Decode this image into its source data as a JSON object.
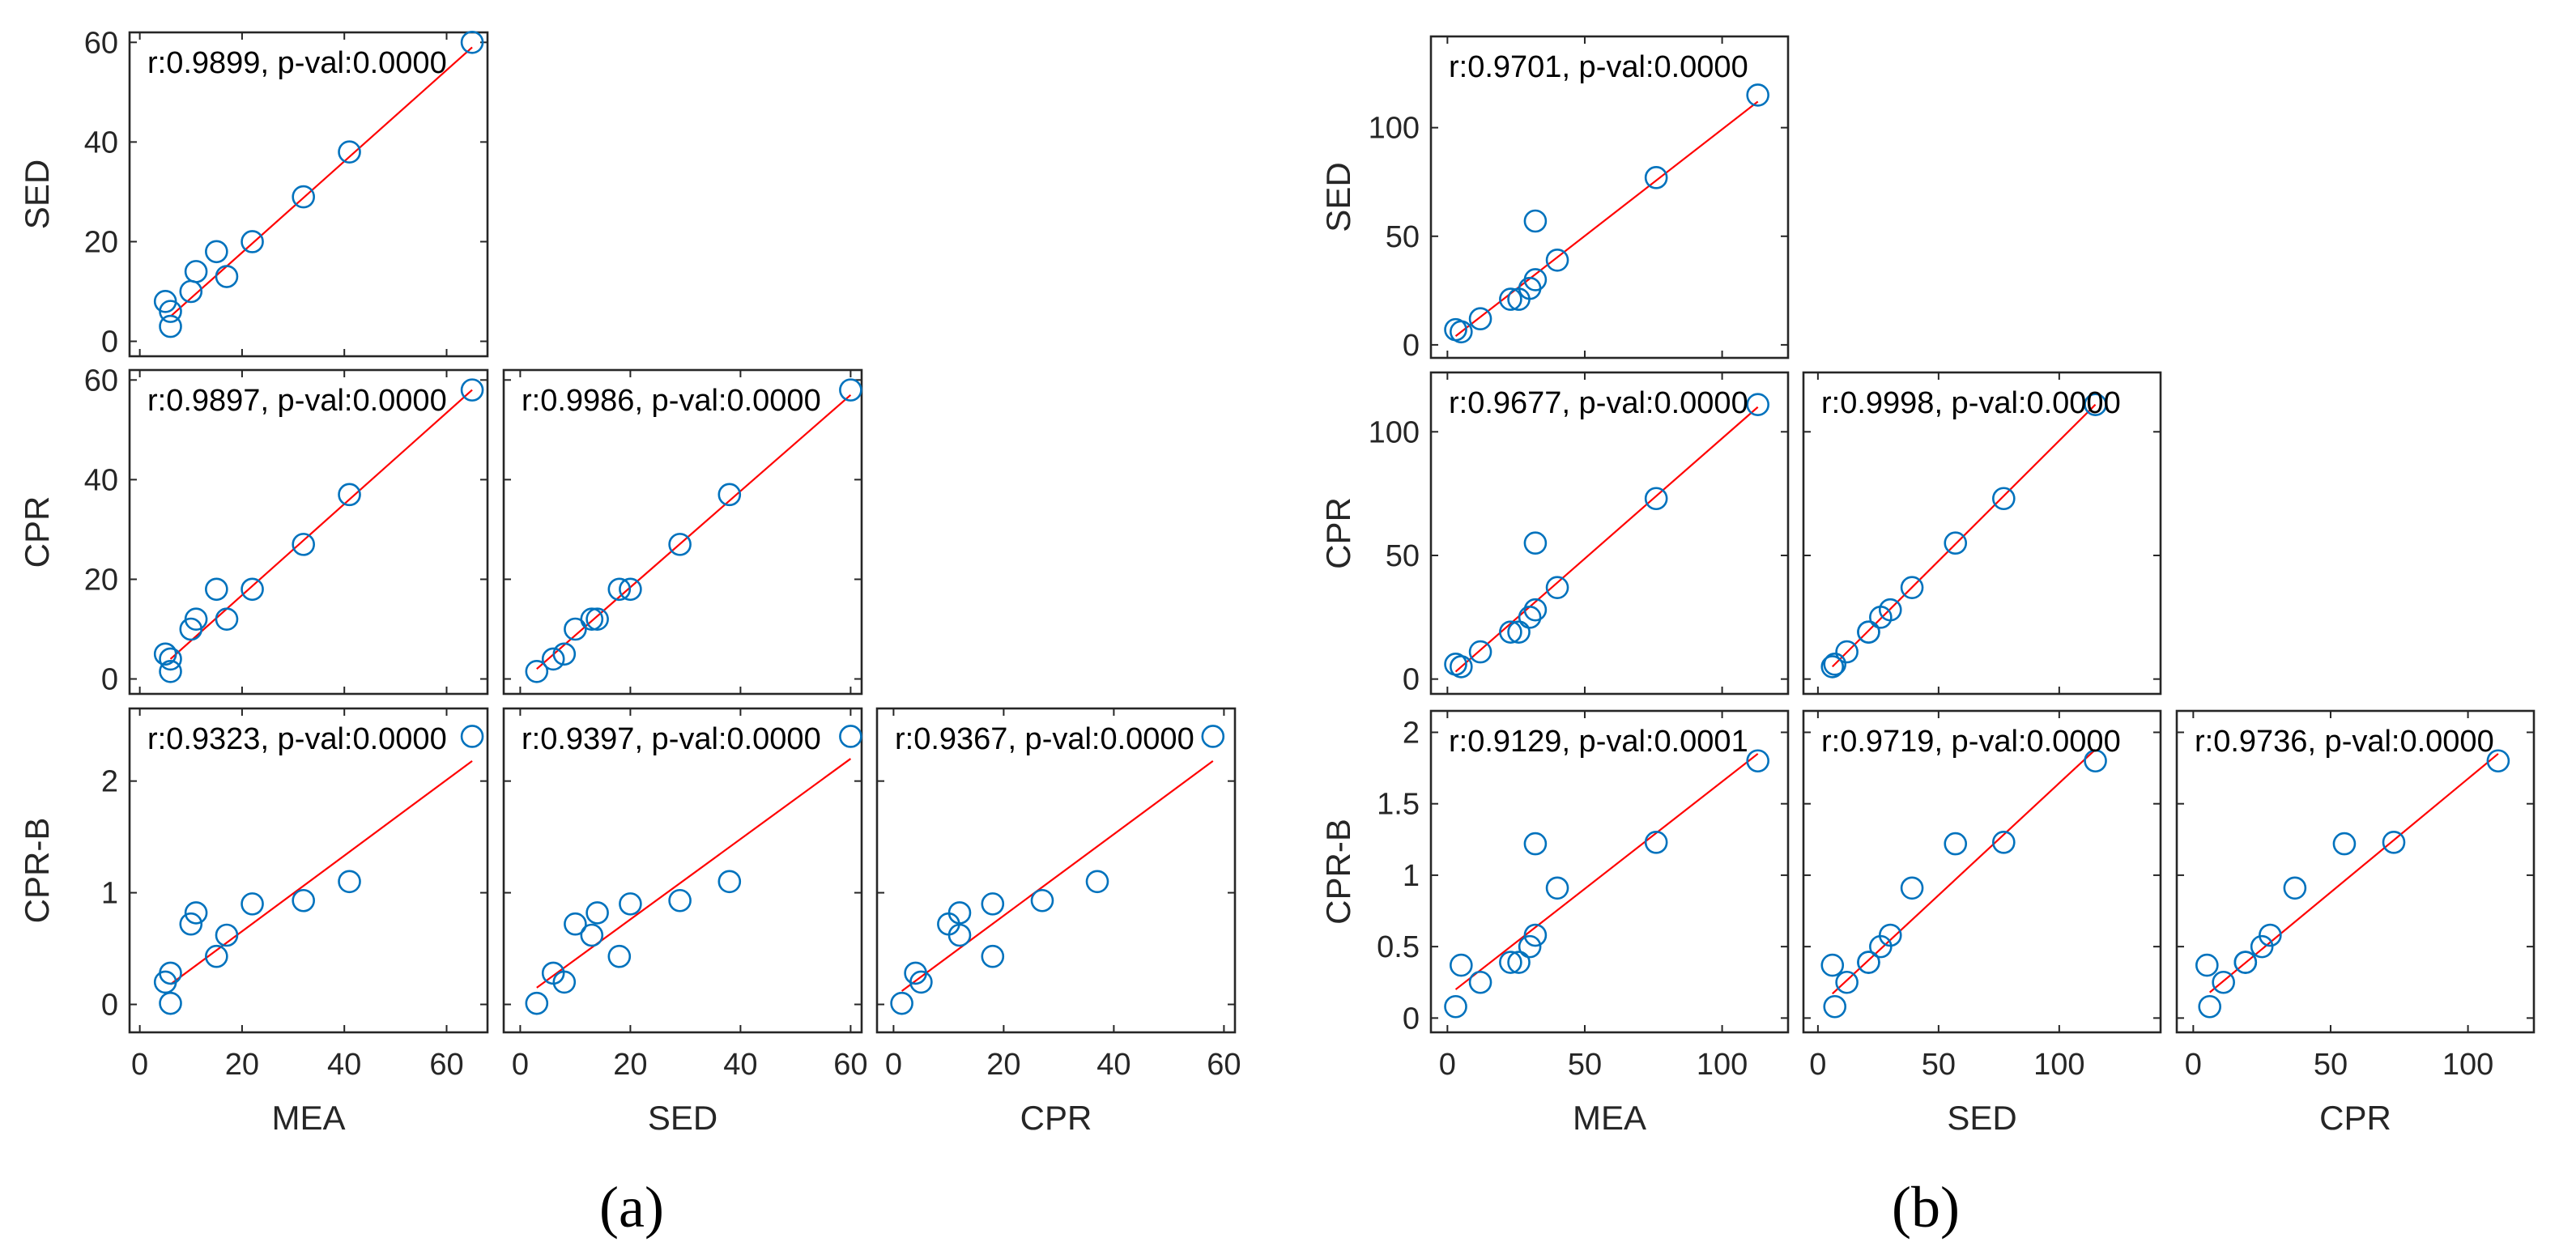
{
  "figure": {
    "colors": {
      "points": "#0072BD",
      "fit": "#FF0000",
      "axes": "#262626"
    },
    "panels": [
      {
        "label": "(a)",
        "variables": [
          "MEA",
          "SED",
          "CPR",
          "CPR-B"
        ],
        "ticks": {
          "MEA": {
            "lim": [
              -2,
              68
            ],
            "ticks": [
              0,
              20,
              40,
              60
            ]
          },
          "SED": {
            "lim": [
              -3,
              62
            ],
            "ticks": [
              0,
              20,
              40,
              60
            ]
          },
          "CPR": {
            "lim": [
              -3,
              62
            ],
            "ticks": [
              0,
              20,
              40,
              60
            ]
          },
          "CPR-B": {
            "lim": [
              -0.25,
              2.65
            ],
            "ticks": [
              0,
              1,
              2
            ]
          }
        }
      },
      {
        "label": "(b)",
        "variables": [
          "MEA",
          "SED",
          "CPR",
          "CPR-B"
        ],
        "ticks": {
          "MEA": {
            "lim": [
              -6,
              124
            ],
            "ticks": [
              0,
              50,
              100
            ]
          },
          "SED": {
            "lim": [
              -6,
              142
            ],
            "ticks": [
              0,
              50,
              100
            ]
          },
          "CPR": {
            "lim": [
              -6,
              124
            ],
            "ticks": [
              0,
              50,
              100
            ]
          },
          "CPR-B": {
            "lim": [
              -0.1,
              2.15
            ],
            "ticks": [
              0,
              0.5,
              1,
              1.5,
              2
            ]
          }
        }
      }
    ]
  },
  "chart_data": [
    {
      "type": "scatter",
      "panel": "(a)",
      "title": "r:0.9899, p-val:0.0000",
      "xlabel": "",
      "ylabel": "SED",
      "xlim": [
        -2,
        68
      ],
      "ylim": [
        -3,
        62
      ],
      "x": [
        5,
        6,
        6,
        10,
        11,
        15,
        17,
        22,
        32,
        41,
        65
      ],
      "y": [
        8,
        3,
        6,
        10,
        14,
        18,
        13,
        20,
        29,
        38,
        60
      ],
      "fit": [
        [
          6,
          5
        ],
        [
          65,
          59
        ]
      ]
    },
    {
      "type": "scatter",
      "panel": "(a)",
      "title": "r:0.9897, p-val:0.0000",
      "xlabel": "",
      "ylabel": "CPR",
      "xlim": [
        -2,
        68
      ],
      "ylim": [
        -3,
        62
      ],
      "x": [
        5,
        6,
        6,
        10,
        11,
        15,
        17,
        22,
        32,
        41,
        65
      ],
      "y": [
        5,
        1.5,
        4,
        10,
        12,
        18,
        12,
        18,
        27,
        37,
        58
      ],
      "fit": [
        [
          6,
          4
        ],
        [
          65,
          58
        ]
      ]
    },
    {
      "type": "scatter",
      "panel": "(a)",
      "title": "r:0.9986, p-val:0.0000",
      "xlabel": "",
      "ylabel": "",
      "xlim": [
        -3,
        62
      ],
      "ylim": [
        -3,
        62
      ],
      "x": [
        3,
        6,
        8,
        10,
        13,
        14,
        18,
        20,
        29,
        38,
        60
      ],
      "y": [
        1.5,
        4,
        5,
        10,
        12,
        12,
        18,
        18,
        27,
        37,
        58
      ],
      "fit": [
        [
          3,
          2
        ],
        [
          60,
          57
        ]
      ]
    },
    {
      "type": "scatter",
      "panel": "(a)",
      "title": "r:0.9323, p-val:0.0000",
      "xlabel": "MEA",
      "ylabel": "CPR-B",
      "xlim": [
        -2,
        68
      ],
      "ylim": [
        -0.25,
        2.65
      ],
      "x": [
        5,
        6,
        6,
        10,
        11,
        15,
        17,
        22,
        32,
        41,
        65
      ],
      "y": [
        0.2,
        0.01,
        0.28,
        0.72,
        0.82,
        0.43,
        0.62,
        0.9,
        0.93,
        1.1,
        2.4
      ],
      "fit": [
        [
          6,
          0.18
        ],
        [
          65,
          2.18
        ]
      ]
    },
    {
      "type": "scatter",
      "panel": "(a)",
      "title": "r:0.9397, p-val:0.0000",
      "xlabel": "SED",
      "ylabel": "",
      "xlim": [
        -3,
        62
      ],
      "ylim": [
        -0.25,
        2.65
      ],
      "x": [
        3,
        6,
        8,
        10,
        13,
        14,
        18,
        20,
        29,
        38,
        60
      ],
      "y": [
        0.01,
        0.28,
        0.2,
        0.72,
        0.62,
        0.82,
        0.43,
        0.9,
        0.93,
        1.1,
        2.4
      ],
      "fit": [
        [
          3,
          0.15
        ],
        [
          60,
          2.2
        ]
      ]
    },
    {
      "type": "scatter",
      "panel": "(a)",
      "title": "r:0.9367, p-val:0.0000",
      "xlabel": "CPR",
      "ylabel": "",
      "xlim": [
        -3,
        62
      ],
      "ylim": [
        -0.25,
        2.65
      ],
      "x": [
        1.5,
        4,
        5,
        10,
        12,
        12,
        18,
        18,
        27,
        37,
        58
      ],
      "y": [
        0.01,
        0.28,
        0.2,
        0.72,
        0.82,
        0.62,
        0.43,
        0.9,
        0.93,
        1.1,
        2.4
      ],
      "fit": [
        [
          1.5,
          0.12
        ],
        [
          58,
          2.18
        ]
      ]
    },
    {
      "type": "scatter",
      "panel": "(b)",
      "title": "r:0.9701, p-val:0.0000",
      "xlabel": "",
      "ylabel": "SED",
      "xlim": [
        -6,
        124
      ],
      "ylim": [
        -6,
        142
      ],
      "x": [
        3,
        5,
        12,
        23,
        26,
        30,
        32,
        32,
        40,
        76,
        113
      ],
      "y": [
        7,
        6,
        12,
        21,
        21,
        26,
        30,
        57,
        39,
        77,
        115
      ],
      "fit": [
        [
          3,
          4
        ],
        [
          113,
          112
        ]
      ]
    },
    {
      "type": "scatter",
      "panel": "(b)",
      "title": "r:0.9677, p-val:0.0000",
      "xlabel": "",
      "ylabel": "CPR",
      "xlim": [
        -6,
        124
      ],
      "ylim": [
        -6,
        124
      ],
      "x": [
        3,
        5,
        12,
        23,
        26,
        30,
        32,
        32,
        40,
        76,
        113
      ],
      "y": [
        6,
        5,
        11,
        19,
        19,
        25,
        28,
        55,
        37,
        73,
        111
      ],
      "fit": [
        [
          3,
          3
        ],
        [
          113,
          110
        ]
      ]
    },
    {
      "type": "scatter",
      "panel": "(b)",
      "title": "r:0.9998, p-val:0.0000",
      "xlabel": "",
      "ylabel": "",
      "xlim": [
        -6,
        142
      ],
      "ylim": [
        -6,
        124
      ],
      "x": [
        6,
        7,
        12,
        21,
        21,
        26,
        30,
        39,
        57,
        77,
        115
      ],
      "y": [
        5,
        6,
        11,
        19,
        19,
        25,
        28,
        37,
        55,
        73,
        111
      ],
      "fit": [
        [
          6,
          5
        ],
        [
          115,
          111
        ]
      ]
    },
    {
      "type": "scatter",
      "panel": "(b)",
      "title": "r:0.9129, p-val:0.0001",
      "xlabel": "MEA",
      "ylabel": "CPR-B",
      "xlim": [
        -6,
        124
      ],
      "ylim": [
        -0.1,
        2.15
      ],
      "x": [
        3,
        5,
        12,
        23,
        26,
        30,
        32,
        32,
        40,
        76,
        113
      ],
      "y": [
        0.08,
        0.37,
        0.25,
        0.39,
        0.39,
        0.5,
        0.58,
        1.22,
        0.91,
        1.23,
        1.8
      ],
      "fit": [
        [
          3,
          0.2
        ],
        [
          113,
          1.85
        ]
      ]
    },
    {
      "type": "scatter",
      "panel": "(b)",
      "title": "r:0.9719, p-val:0.0000",
      "xlabel": "SED",
      "ylabel": "",
      "xlim": [
        -6,
        142
      ],
      "ylim": [
        -0.1,
        2.15
      ],
      "x": [
        6,
        7,
        12,
        21,
        21,
        26,
        30,
        39,
        57,
        77,
        115
      ],
      "y": [
        0.37,
        0.08,
        0.25,
        0.39,
        0.39,
        0.5,
        0.58,
        0.91,
        1.22,
        1.23,
        1.8
      ],
      "fit": [
        [
          6,
          0.17
        ],
        [
          115,
          1.88
        ]
      ]
    },
    {
      "type": "scatter",
      "panel": "(b)",
      "title": "r:0.9736, p-val:0.0000",
      "xlabel": "CPR",
      "ylabel": "",
      "xlim": [
        -6,
        124
      ],
      "ylim": [
        -0.1,
        2.15
      ],
      "x": [
        5,
        6,
        11,
        19,
        19,
        25,
        28,
        37,
        55,
        73,
        111
      ],
      "y": [
        0.37,
        0.08,
        0.25,
        0.39,
        0.39,
        0.5,
        0.58,
        0.91,
        1.22,
        1.23,
        1.8
      ],
      "fit": [
        [
          6,
          0.18
        ],
        [
          111,
          1.85
        ]
      ]
    }
  ]
}
